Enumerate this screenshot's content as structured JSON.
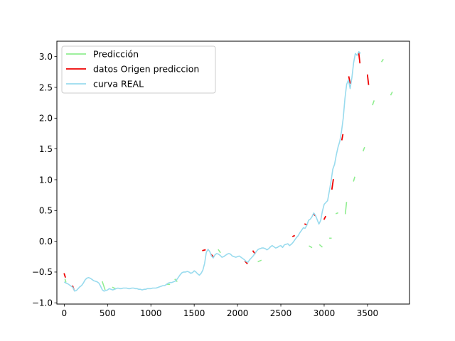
{
  "chart_data": {
    "type": "line",
    "title": "",
    "xlabel": "",
    "ylabel": "",
    "xlim": [
      -85,
      3985
    ],
    "ylim": [
      -1.02,
      3.25
    ],
    "xticks": [
      0,
      500,
      1000,
      1500,
      2000,
      2500,
      3000,
      3500
    ],
    "xtick_labels": [
      "0",
      "500",
      "1000",
      "1500",
      "2000",
      "2500",
      "3000",
      "3500"
    ],
    "yticks": [
      -1.0,
      -0.5,
      0.0,
      0.5,
      1.0,
      1.5,
      2.0,
      2.5,
      3.0
    ],
    "ytick_labels": [
      "−1.0",
      "−0.5",
      "0.0",
      "0.5",
      "1.0",
      "1.5",
      "2.0",
      "2.5",
      "3.0"
    ],
    "grid": false,
    "legend_position": "top-left",
    "series": [
      {
        "name": "Predicción",
        "color": "#90ee90",
        "segments": [
          [
            [
              10,
              -0.62
            ],
            [
              18,
              -0.66
            ]
          ],
          [
            [
              440,
              -0.66
            ],
            [
              470,
              -0.78
            ]
          ],
          [
            [
              560,
              -0.75
            ],
            [
              590,
              -0.77
            ]
          ],
          [
            [
              1180,
              -0.7
            ],
            [
              1215,
              -0.7
            ]
          ],
          [
            [
              1280,
              -0.62
            ],
            [
              1300,
              -0.65
            ]
          ],
          [
            [
              1780,
              -0.14
            ],
            [
              1800,
              -0.18
            ]
          ],
          [
            [
              2240,
              -0.33
            ],
            [
              2270,
              -0.31
            ]
          ],
          [
            [
              2830,
              -0.08
            ],
            [
              2855,
              -0.1
            ]
          ],
          [
            [
              2950,
              -0.06
            ],
            [
              2975,
              -0.09
            ]
          ],
          [
            [
              3065,
              0.05
            ],
            [
              3080,
              0.05
            ]
          ],
          [
            [
              3140,
              0.45
            ],
            [
              3155,
              0.46
            ]
          ],
          [
            [
              3245,
              0.45
            ],
            [
              3258,
              0.63
            ]
          ],
          [
            [
              3340,
              0.98
            ],
            [
              3352,
              1.04
            ]
          ],
          [
            [
              3452,
              1.47
            ],
            [
              3465,
              1.52
            ]
          ],
          [
            [
              3560,
              2.22
            ],
            [
              3575,
              2.28
            ]
          ],
          [
            [
              3665,
              2.92
            ],
            [
              3680,
              2.95
            ]
          ],
          [
            [
              3770,
              2.38
            ],
            [
              3785,
              2.42
            ]
          ]
        ]
      },
      {
        "name": "datos Origen prediccion",
        "color": "#ee0000",
        "segments": [
          [
            [
              0,
              -0.53
            ],
            [
              12,
              -0.58
            ]
          ],
          [
            [
              98,
              -0.73
            ],
            [
              110,
              -0.78
            ]
          ],
          [
            [
              1600,
              -0.15
            ],
            [
              1625,
              -0.14
            ]
          ],
          [
            [
              1700,
              -0.22
            ],
            [
              1720,
              -0.25
            ]
          ],
          [
            [
              2090,
              -0.33
            ],
            [
              2110,
              -0.36
            ]
          ],
          [
            [
              2180,
              -0.16
            ],
            [
              2200,
              -0.2
            ]
          ],
          [
            [
              2640,
              0.08
            ],
            [
              2655,
              0.09
            ]
          ],
          [
            [
              2780,
              0.28
            ],
            [
              2795,
              0.27
            ]
          ],
          [
            [
              2880,
              0.44
            ],
            [
              2895,
              0.42
            ]
          ],
          [
            [
              3000,
              0.36
            ],
            [
              3015,
              0.4
            ]
          ],
          [
            [
              3090,
              0.85
            ],
            [
              3105,
              1.0
            ]
          ],
          [
            [
              3205,
              1.65
            ],
            [
              3215,
              1.73
            ]
          ],
          [
            [
              3285,
              2.67
            ],
            [
              3300,
              2.57
            ]
          ],
          [
            [
              3400,
              3.05
            ],
            [
              3412,
              2.9
            ]
          ],
          [
            [
              3500,
              2.7
            ],
            [
              3512,
              2.55
            ]
          ]
        ]
      },
      {
        "name": "curva REAL",
        "color": "#99dbee",
        "x": [
          0,
          20,
          40,
          60,
          80,
          100,
          120,
          140,
          160,
          180,
          200,
          220,
          240,
          260,
          280,
          300,
          320,
          340,
          360,
          380,
          400,
          420,
          440,
          460,
          480,
          500,
          520,
          540,
          560,
          580,
          600,
          620,
          640,
          660,
          680,
          700,
          720,
          740,
          760,
          780,
          800,
          820,
          840,
          860,
          880,
          900,
          920,
          940,
          960,
          980,
          1000,
          1020,
          1040,
          1060,
          1080,
          1100,
          1120,
          1140,
          1160,
          1180,
          1200,
          1220,
          1240,
          1260,
          1280,
          1300,
          1320,
          1340,
          1360,
          1380,
          1400,
          1420,
          1440,
          1460,
          1480,
          1500,
          1520,
          1540,
          1560,
          1580,
          1600,
          1620,
          1640,
          1660,
          1680,
          1700,
          1720,
          1740,
          1760,
          1780,
          1800,
          1820,
          1840,
          1860,
          1880,
          1900,
          1920,
          1940,
          1960,
          1980,
          2000,
          2020,
          2040,
          2060,
          2080,
          2100,
          2120,
          2140,
          2160,
          2180,
          2200,
          2220,
          2240,
          2260,
          2280,
          2300,
          2320,
          2340,
          2360,
          2380,
          2400,
          2420,
          2440,
          2460,
          2480,
          2500,
          2520,
          2540,
          2560,
          2580,
          2600,
          2620,
          2640,
          2660,
          2680,
          2700,
          2720,
          2740,
          2760,
          2780,
          2800,
          2820,
          2840,
          2860,
          2880,
          2900,
          2920,
          2940,
          2960,
          2980,
          3000,
          3020,
          3040,
          3060,
          3080,
          3100,
          3120,
          3140,
          3160,
          3180,
          3200,
          3220,
          3240,
          3260,
          3280,
          3300,
          3320,
          3340,
          3360,
          3380,
          3400,
          3420
        ],
        "values": [
          -0.66,
          -0.68,
          -0.69,
          -0.71,
          -0.73,
          -0.75,
          -0.81,
          -0.8,
          -0.77,
          -0.74,
          -0.72,
          -0.68,
          -0.63,
          -0.6,
          -0.59,
          -0.6,
          -0.62,
          -0.64,
          -0.65,
          -0.66,
          -0.68,
          -0.73,
          -0.79,
          -0.81,
          -0.8,
          -0.79,
          -0.77,
          -0.78,
          -0.79,
          -0.78,
          -0.77,
          -0.76,
          -0.77,
          -0.77,
          -0.76,
          -0.76,
          -0.76,
          -0.77,
          -0.77,
          -0.76,
          -0.76,
          -0.77,
          -0.77,
          -0.78,
          -0.78,
          -0.79,
          -0.78,
          -0.78,
          -0.77,
          -0.77,
          -0.77,
          -0.76,
          -0.76,
          -0.76,
          -0.75,
          -0.74,
          -0.73,
          -0.72,
          -0.72,
          -0.7,
          -0.68,
          -0.67,
          -0.67,
          -0.66,
          -0.65,
          -0.62,
          -0.58,
          -0.54,
          -0.51,
          -0.5,
          -0.5,
          -0.49,
          -0.5,
          -0.52,
          -0.51,
          -0.48,
          -0.5,
          -0.53,
          -0.55,
          -0.52,
          -0.47,
          -0.36,
          -0.18,
          -0.13,
          -0.17,
          -0.24,
          -0.27,
          -0.22,
          -0.2,
          -0.21,
          -0.23,
          -0.26,
          -0.25,
          -0.23,
          -0.21,
          -0.2,
          -0.21,
          -0.24,
          -0.25,
          -0.26,
          -0.25,
          -0.24,
          -0.26,
          -0.28,
          -0.3,
          -0.33,
          -0.34,
          -0.3,
          -0.27,
          -0.24,
          -0.2,
          -0.16,
          -0.13,
          -0.12,
          -0.11,
          -0.11,
          -0.12,
          -0.14,
          -0.12,
          -0.09,
          -0.07,
          -0.09,
          -0.11,
          -0.1,
          -0.08,
          -0.07,
          -0.1,
          -0.06,
          -0.05,
          -0.04,
          -0.07,
          -0.05,
          -0.02,
          0.02,
          0.06,
          0.09,
          0.14,
          0.18,
          0.22,
          0.21,
          0.26,
          0.34,
          0.36,
          0.4,
          0.46,
          0.42,
          0.35,
          0.28,
          0.34,
          0.49,
          0.6,
          0.63,
          0.66,
          0.82,
          0.98,
          1.17,
          1.25,
          1.4,
          1.53,
          1.62,
          1.78,
          2.0,
          2.32,
          2.55,
          2.62,
          2.48,
          2.66,
          2.9,
          3.05,
          3.02,
          3.08,
          3.05
        ]
      }
    ]
  }
}
